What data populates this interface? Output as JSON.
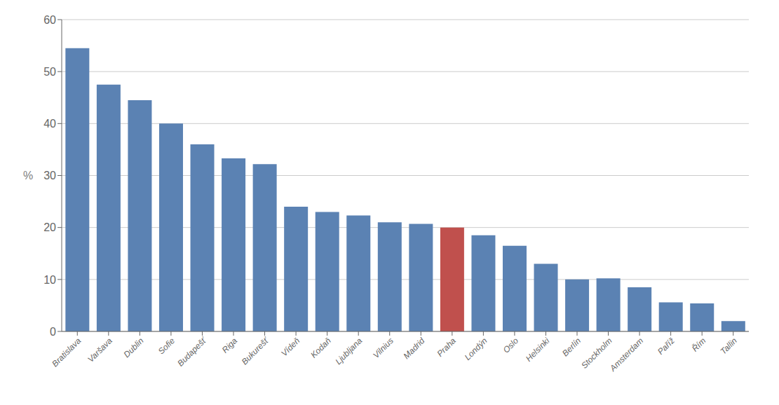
{
  "chart_data": {
    "type": "bar",
    "categories": [
      "Bratislava",
      "Varšava",
      "Dublin",
      "Sofie",
      "Budapešť",
      "Riga",
      "Bukurešť",
      "Vídeň",
      "Kodaň",
      "Ljubljana",
      "Vilnius",
      "Madrid",
      "Praha",
      "Londýn",
      "Oslo",
      "Helsinki",
      "Berlín",
      "Stockholm",
      "Amsterdam",
      "Paříž",
      "Řím",
      "Tallin"
    ],
    "values": [
      54.5,
      47.5,
      44.5,
      40.0,
      36.0,
      33.3,
      32.2,
      24.0,
      23.0,
      22.3,
      21.0,
      20.7,
      20.0,
      18.5,
      16.5,
      13.0,
      10.0,
      10.2,
      8.5,
      5.6,
      5.4,
      2.0
    ],
    "colors": [
      "#5B82B3",
      "#5B82B3",
      "#5B82B3",
      "#5B82B3",
      "#5B82B3",
      "#5B82B3",
      "#5B82B3",
      "#5B82B3",
      "#5B82B3",
      "#5B82B3",
      "#5B82B3",
      "#5B82B3",
      "#C0504D",
      "#5B82B3",
      "#5B82B3",
      "#5B82B3",
      "#5B82B3",
      "#5B82B3",
      "#5B82B3",
      "#5B82B3",
      "#5B82B3",
      "#5B82B3"
    ],
    "ylabel": "%",
    "ylim": [
      0,
      60
    ],
    "yticks": [
      0,
      10,
      20,
      30,
      40,
      50,
      60
    ],
    "grid": true
  }
}
